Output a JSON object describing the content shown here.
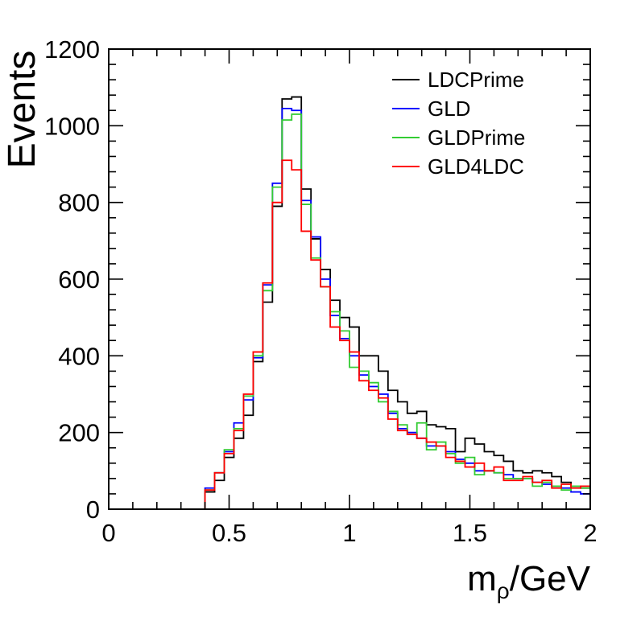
{
  "chart_data": {
    "type": "line",
    "step": true,
    "title": "",
    "xlabel": "m",
    "xlabel_sub": "ρ",
    "xlabel_suffix": "/GeV",
    "ylabel": "Events",
    "xlim": [
      0,
      2
    ],
    "ylim": [
      0,
      1200
    ],
    "xticks": [
      "0",
      "0.5",
      "1",
      "1.5",
      "2"
    ],
    "yticks": [
      "0",
      "200",
      "400",
      "600",
      "800",
      "1000",
      "1200"
    ],
    "legend_position": "top-right",
    "grid": false,
    "x_edges": [
      0,
      0.04,
      0.08,
      0.12,
      0.16,
      0.2,
      0.24,
      0.28,
      0.32,
      0.36,
      0.4,
      0.44,
      0.48,
      0.52,
      0.56,
      0.6,
      0.64,
      0.68,
      0.72,
      0.76,
      0.8,
      0.84,
      0.88,
      0.92,
      0.96,
      1.0,
      1.04,
      1.08,
      1.12,
      1.16,
      1.2,
      1.24,
      1.28,
      1.32,
      1.36,
      1.4,
      1.44,
      1.48,
      1.52,
      1.56,
      1.6,
      1.64,
      1.68,
      1.72,
      1.76,
      1.8,
      1.84,
      1.88,
      1.92,
      1.96,
      2.0
    ],
    "series": [
      {
        "name": "LDCPrime",
        "color": "#000000",
        "values": [
          0,
          0,
          0,
          0,
          0,
          0,
          0,
          0,
          0,
          0,
          45,
          75,
          135,
          185,
          245,
          385,
          540,
          790,
          1070,
          1075,
          835,
          705,
          625,
          545,
          500,
          475,
          400,
          400,
          360,
          310,
          280,
          250,
          255,
          220,
          215,
          210,
          150,
          185,
          170,
          150,
          140,
          125,
          100,
          95,
          100,
          95,
          85,
          70,
          60,
          55
        ]
      },
      {
        "name": "GLD",
        "color": "#0000ff",
        "values": [
          0,
          0,
          0,
          0,
          0,
          0,
          0,
          0,
          0,
          0,
          55,
          95,
          150,
          225,
          285,
          395,
          585,
          850,
          1045,
          1040,
          805,
          710,
          600,
          505,
          445,
          400,
          350,
          320,
          300,
          250,
          210,
          200,
          185,
          165,
          165,
          150,
          130,
          120,
          100,
          100,
          95,
          90,
          80,
          80,
          70,
          65,
          60,
          55,
          45,
          40
        ]
      },
      {
        "name": "GLDPrime",
        "color": "#33cc33",
        "values": [
          0,
          0,
          0,
          0,
          0,
          0,
          0,
          0,
          0,
          0,
          50,
          95,
          155,
          210,
          295,
          400,
          570,
          840,
          1015,
          1030,
          795,
          655,
          580,
          515,
          465,
          370,
          360,
          330,
          280,
          255,
          220,
          195,
          225,
          155,
          175,
          145,
          120,
          135,
          90,
          100,
          95,
          80,
          80,
          80,
          60,
          70,
          60,
          50,
          60,
          55
        ]
      },
      {
        "name": "GLD4LDC",
        "color": "#ff0000",
        "values": [
          0,
          0,
          0,
          0,
          0,
          0,
          0,
          0,
          0,
          0,
          50,
          95,
          145,
          205,
          300,
          410,
          590,
          800,
          910,
          885,
          725,
          650,
          580,
          475,
          440,
          410,
          335,
          310,
          290,
          235,
          205,
          195,
          185,
          175,
          165,
          135,
          125,
          110,
          120,
          100,
          110,
          75,
          75,
          85,
          70,
          75,
          55,
          65,
          55,
          60
        ]
      }
    ]
  }
}
